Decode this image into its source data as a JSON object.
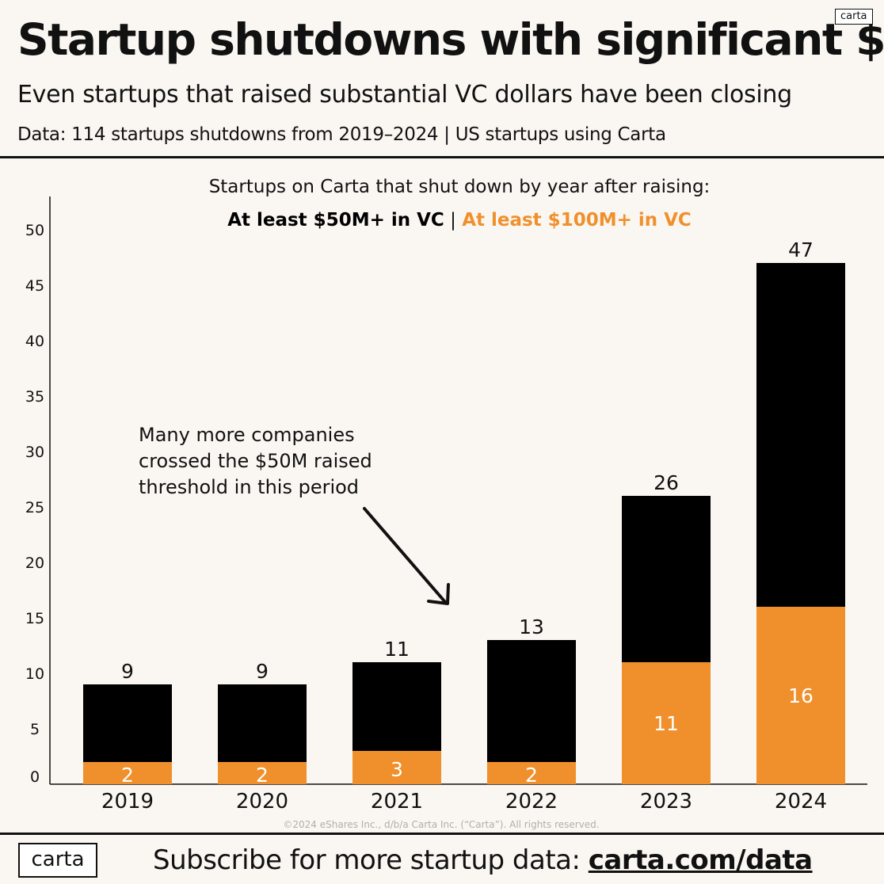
{
  "header": {
    "title": "Startup shutdowns with significant $",
    "subtitle": "Even startups that raised substantial VC dollars have been closing",
    "source": "Data: 114 startups shutdowns from 2019–2024 | US startups using Carta",
    "logo": "carta"
  },
  "colors": {
    "black": "#000000",
    "orange": "#f0902c",
    "background": "#faf7f2"
  },
  "chart_data": {
    "type": "bar",
    "stacked": false,
    "overlap": true,
    "title": "Startups on Carta that shut down  by year after raising:",
    "legend_separator": "|",
    "categories": [
      "2019",
      "2020",
      "2021",
      "2022",
      "2023",
      "2024"
    ],
    "series": [
      {
        "name": "At least $50M+ in VC",
        "color": "#000000",
        "values": [
          9,
          9,
          11,
          13,
          26,
          47
        ]
      },
      {
        "name": "At least $100M+ in VC",
        "color": "#f0902c",
        "values": [
          2,
          2,
          3,
          2,
          11,
          16
        ]
      }
    ],
    "ylim": [
      0,
      52
    ],
    "yticks": [
      0,
      5,
      10,
      15,
      20,
      25,
      30,
      35,
      40,
      45,
      50
    ],
    "grid": false,
    "legend_position": "top-center",
    "annotation": {
      "lines": [
        "Many more companies",
        "crossed the $50M raised",
        "threshold in this period"
      ],
      "points_to": "2022"
    },
    "copyright": "©2024 eShares Inc., d/b/a Carta Inc. (“Carta”). All rights reserved."
  },
  "footer": {
    "logo": "carta",
    "text": "Subscribe for more startup data: ",
    "link": "carta.com/data"
  }
}
